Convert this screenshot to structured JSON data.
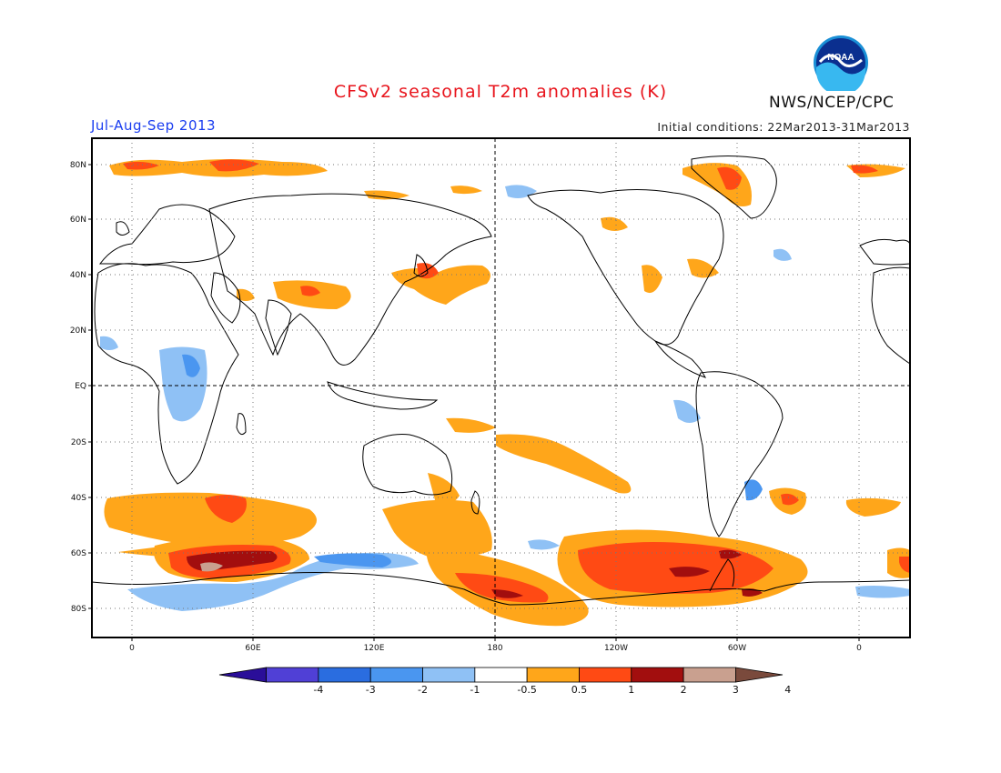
{
  "title": "CFSv2 seasonal T2m anomalies (K)",
  "season": "Jul-Aug-Sep 2013",
  "initial_conditions": "Initial conditions: 22Mar2013-31Mar2013",
  "agency": "NWS/NCEP/CPC",
  "logo_text": "NOAA",
  "lat_labels": [
    "80N",
    "60N",
    "40N",
    "20N",
    "EQ",
    "20S",
    "40S",
    "60S",
    "80S"
  ],
  "lon_labels": [
    "0",
    "60E",
    "120E",
    "180",
    "120W",
    "60W",
    "0"
  ],
  "colorbar": {
    "labels": [
      "-4",
      "-3",
      "-2",
      "-1",
      "-0.5",
      "0.5",
      "1",
      "2",
      "3",
      "4"
    ],
    "colors": [
      "#2a0e99",
      "#5040d6",
      "#2a6de0",
      "#4a96f0",
      "#8fc1f5",
      "#ffffff",
      "#ffa61a",
      "#ff4a14",
      "#a20e0e",
      "#c9a08f",
      "#7a4a3c"
    ]
  },
  "colors": {
    "title": "#e8141c",
    "season": "#1a3df0",
    "warm_light": "#ffa61a",
    "warm_mid": "#ff4a14",
    "warm_dark": "#a20e0e",
    "warm_extreme": "#c9a08f",
    "cool_light": "#8fc1f5",
    "cool_mid": "#4a96f0",
    "cool_dark": "#2a6de0"
  }
}
